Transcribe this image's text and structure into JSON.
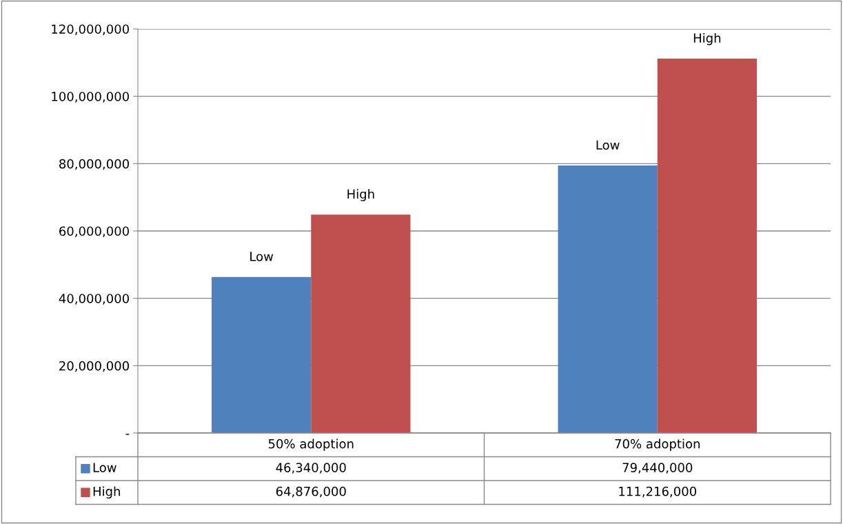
{
  "chart_data": {
    "type": "bar",
    "categories": [
      "50% adoption",
      "70% adoption"
    ],
    "series": [
      {
        "name": "Low",
        "color": "#4f81bd",
        "values": [
          46340000,
          79440000
        ],
        "value_labels": [
          "46,340,000",
          "79,440,000"
        ]
      },
      {
        "name": "High",
        "color": "#c0504d",
        "values": [
          64876000,
          111216000
        ],
        "value_labels": [
          "64,876,000",
          "111,216,000"
        ]
      }
    ],
    "ylim": [
      0,
      120000000
    ],
    "yticks": [
      {
        "value": 0,
        "label": "-"
      },
      {
        "value": 20000000,
        "label": "20,000,000"
      },
      {
        "value": 40000000,
        "label": "40,000,000"
      },
      {
        "value": 60000000,
        "label": "60,000,000"
      },
      {
        "value": 80000000,
        "label": "80,000,000"
      },
      {
        "value": 100000000,
        "label": "100,000,000"
      },
      {
        "value": 120000000,
        "label": "120,000,000"
      }
    ],
    "grid": "y",
    "legend": "bottom"
  }
}
